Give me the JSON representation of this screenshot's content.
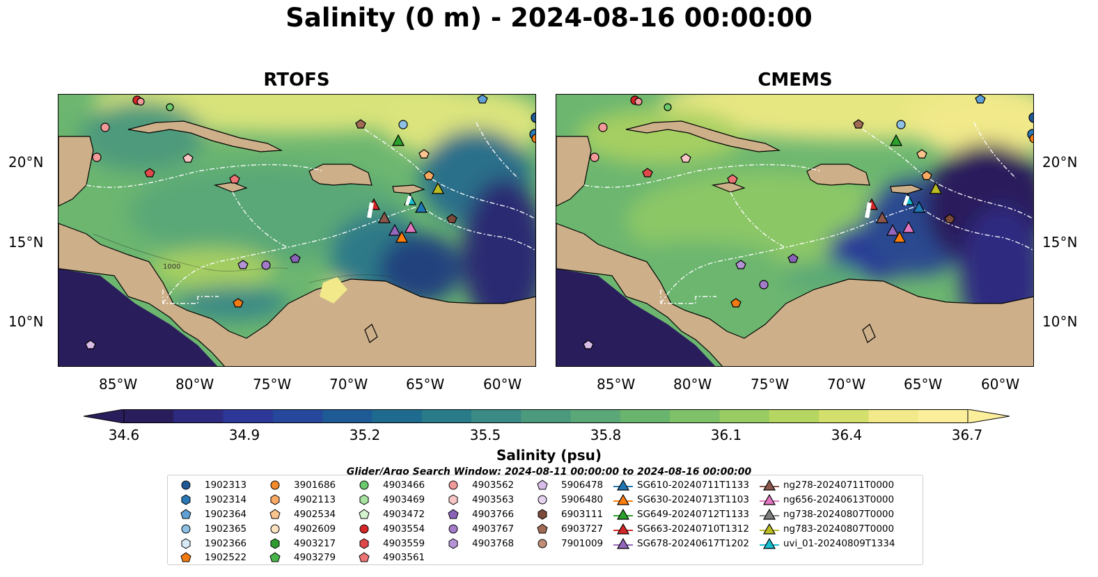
{
  "title": "Salinity (0 m) - 2024-08-16 00:00:00",
  "panels": [
    {
      "title": "RTOFS"
    },
    {
      "title": "CMEMS"
    }
  ],
  "axes": {
    "lat_labels": [
      "20°N",
      "15°N",
      "10°N"
    ],
    "lon_labels": [
      "85°W",
      "80°W",
      "75°W",
      "70°W",
      "65°W",
      "60°W"
    ]
  },
  "contour_labels": [
    "1000"
  ],
  "colorbar": {
    "label": "Salinity (psu)",
    "ticks": [
      "34.6",
      "34.9",
      "35.2",
      "35.5",
      "35.8",
      "36.1",
      "36.4",
      "36.7"
    ],
    "min": 34.6,
    "max": 36.7,
    "colors": [
      "#2a1d5c",
      "#2d2a80",
      "#2c3797",
      "#26479c",
      "#1e5a96",
      "#1e6b8f",
      "#2a7b8a",
      "#3a8a85",
      "#4b9a7e",
      "#5aa877",
      "#69b56e",
      "#7fc168",
      "#99cc63",
      "#b6d662",
      "#d4e06c",
      "#f1e98a",
      "#fbef9c"
    ]
  },
  "search_window": "Glider/Argo Search Window: 2024-08-11 00:00:00 to 2024-08-16 00:00:00",
  "land_color": "#cdb08a",
  "legend": {
    "columns": [
      [
        {
          "label": "1902313",
          "marker": "circle",
          "color": "#1f5a96"
        },
        {
          "label": "1902314",
          "marker": "hexagon",
          "color": "#2a78b5"
        },
        {
          "label": "1902364",
          "marker": "pentagon",
          "color": "#5fa0d6"
        },
        {
          "label": "1902365",
          "marker": "circle",
          "color": "#8fc1e6"
        },
        {
          "label": "1902366",
          "marker": "hexagon",
          "color": "#d7e9f5"
        },
        {
          "label": "1902522",
          "marker": "pentagon",
          "color": "#f27a12"
        }
      ],
      [
        {
          "label": "3901686",
          "marker": "circle",
          "color": "#f58a2a"
        },
        {
          "label": "4902113",
          "marker": "hexagon",
          "color": "#f8a962"
        },
        {
          "label": "4902534",
          "marker": "pentagon",
          "color": "#fac48e"
        },
        {
          "label": "4902609",
          "marker": "circle",
          "color": "#fde2c2"
        },
        {
          "label": "4903217",
          "marker": "hexagon",
          "color": "#2f9a2f"
        },
        {
          "label": "4903279",
          "marker": "pentagon",
          "color": "#49b449"
        }
      ],
      [
        {
          "label": "4903466",
          "marker": "circle",
          "color": "#6cc96c"
        },
        {
          "label": "4903469",
          "marker": "hexagon",
          "color": "#a8e3a0"
        },
        {
          "label": "4903472",
          "marker": "pentagon",
          "color": "#d5f2cf"
        },
        {
          "label": "4903554",
          "marker": "circle",
          "color": "#d62728"
        },
        {
          "label": "4903559",
          "marker": "hexagon",
          "color": "#e0484a"
        },
        {
          "label": "4903561",
          "marker": "pentagon",
          "color": "#ec7475"
        }
      ],
      [
        {
          "label": "4903562",
          "marker": "circle",
          "color": "#f29a9a"
        },
        {
          "label": "4903563",
          "marker": "hexagon",
          "color": "#f8c6c4"
        },
        {
          "label": "4903766",
          "marker": "pentagon",
          "color": "#8a63b8"
        },
        {
          "label": "4903767",
          "marker": "circle",
          "color": "#a47bc8"
        },
        {
          "label": "4903768",
          "marker": "hexagon",
          "color": "#b493d6"
        }
      ],
      [
        {
          "label": "5906478",
          "marker": "pentagon",
          "color": "#d9bde9"
        },
        {
          "label": "5906480",
          "marker": "circle",
          "color": "#e6d3f2"
        },
        {
          "label": "6903111",
          "marker": "hexagon",
          "color": "#7a4a3a"
        },
        {
          "label": "6903727",
          "marker": "pentagon",
          "color": "#a06a55"
        },
        {
          "label": "7901009",
          "marker": "circle",
          "color": "#c08d77"
        }
      ],
      [
        {
          "label": "SG610-20240711T1133",
          "marker": "triangle",
          "color": "#1f77b4"
        },
        {
          "label": "SG630-20240713T1103",
          "marker": "triangle",
          "color": "#ff7f0e"
        },
        {
          "label": "SG649-20240712T1133",
          "marker": "triangle",
          "color": "#2ca02c"
        },
        {
          "label": "SG663-20240710T1312",
          "marker": "triangle",
          "color": "#d62728"
        },
        {
          "label": "SG678-20240617T1202",
          "marker": "triangle",
          "color": "#9467bd"
        }
      ],
      [
        {
          "label": "ng278-20240711T0000",
          "marker": "triangle",
          "color": "#8c564b"
        },
        {
          "label": "ng656-20240613T0000",
          "marker": "triangle",
          "color": "#e377c2"
        },
        {
          "label": "ng738-20240807T0000",
          "marker": "triangle",
          "color": "#7f7f7f"
        },
        {
          "label": "ng783-20240807T0000",
          "marker": "triangle",
          "color": "#bcbd22"
        },
        {
          "label": "uvi_01-20240809T1334",
          "marker": "triangle",
          "color": "#17becf"
        }
      ]
    ]
  }
}
